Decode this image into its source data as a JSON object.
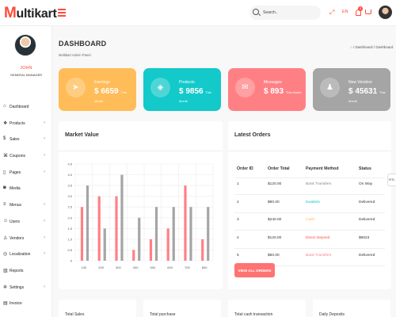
{
  "header": {
    "logo_initial": "M",
    "logo_rest": "ultikart",
    "search_placeholder": "Search..",
    "language": "EN",
    "notification_count": "3"
  },
  "sidebar": {
    "profile_name": "JOHN",
    "profile_role": "GENERAL MANAGER",
    "items": [
      {
        "label": "Dashboard",
        "icon": "home-icon",
        "glyph": "⌂",
        "chevron": false
      },
      {
        "label": "Products",
        "icon": "box-icon",
        "glyph": "❖",
        "chevron": true
      },
      {
        "label": "Sales",
        "icon": "dollar-icon",
        "glyph": "$",
        "chevron": true
      },
      {
        "label": "Coupons",
        "icon": "tag-icon",
        "glyph": "⌘",
        "chevron": true
      },
      {
        "label": "Pages",
        "icon": "clipboard-icon",
        "glyph": "▯",
        "chevron": true
      },
      {
        "label": "Media",
        "icon": "camera-icon",
        "glyph": "◙",
        "chevron": false
      },
      {
        "label": "Menus",
        "icon": "align-left-icon",
        "glyph": "≡",
        "chevron": true
      },
      {
        "label": "Users",
        "icon": "user-plus-icon",
        "glyph": "☺",
        "chevron": true
      },
      {
        "label": "Vendors",
        "icon": "users-icon",
        "glyph": "♙",
        "chevron": true
      },
      {
        "label": "Localization",
        "icon": "chrome-icon",
        "glyph": "◎",
        "chevron": true
      },
      {
        "label": "Reports",
        "icon": "bar-chart-icon",
        "glyph": "▥",
        "chevron": false
      },
      {
        "label": "Settings",
        "icon": "settings-icon",
        "glyph": "✲",
        "chevron": true
      },
      {
        "label": "Invoice",
        "icon": "archive-icon",
        "glyph": "▤",
        "chevron": false
      }
    ]
  },
  "page": {
    "title": "DASHBOARD",
    "subtitle": "Multikart Admin Panel",
    "breadcrumb_sep": "/",
    "breadcrumb_1": "Dashboard",
    "breadcrumb_2": "Dashboard"
  },
  "stats": [
    {
      "label": "Earnings",
      "value": "$ 6659",
      "unit": "This Month",
      "color": "#ffbc58",
      "icon": "navigation-icon",
      "glyph": "➤"
    },
    {
      "label": "Products",
      "value": "$ 9856",
      "unit": "This Month",
      "color": "#13c9ca",
      "icon": "box-icon",
      "glyph": "◈"
    },
    {
      "label": "Messages",
      "value": "$ 893",
      "unit": "This Month",
      "color": "#ff8084",
      "icon": "message-square-icon",
      "glyph": "✉"
    },
    {
      "label": "New Vendors",
      "value": "$ 45631",
      "unit": "This Month",
      "color": "#a5a5a5",
      "icon": "users-icon",
      "glyph": "♟"
    }
  ],
  "market": {
    "title": "Market Value"
  },
  "chart_data": {
    "type": "bar",
    "categories": [
      "100",
      "200",
      "300",
      "400",
      "500",
      "600",
      "700",
      "800"
    ],
    "series": [
      {
        "values": [
          2.5,
          3.0,
          3.0,
          0.5,
          1.0,
          1.5,
          3.5,
          1.0
        ],
        "color": "#ff8084"
      },
      {
        "values": [
          3.5,
          1.5,
          4.0,
          2.0,
          2.5,
          2.5,
          2.5,
          2.5
        ],
        "color": "#a5a5a5"
      }
    ],
    "ylim": [
      0,
      4.5
    ],
    "yticks": [
      "0",
      "0.5",
      "1.0",
      "1.5",
      "2.0",
      "2.5",
      "3.0",
      "3.5",
      "4.0",
      "4.5"
    ],
    "grid": true,
    "legend": "none"
  },
  "orders": {
    "title": "Latest Orders",
    "columns": [
      "Order ID",
      "Order Total",
      "Payment Method",
      "Status"
    ],
    "rows": [
      {
        "id": "1",
        "total": "$120.00",
        "method": "Bank Transfers",
        "method_color": "#888888",
        "status": "On Way"
      },
      {
        "id": "2",
        "total": "$90.00",
        "method": "Ewallets",
        "method_color": "#13c9ca",
        "status": "Delivered"
      },
      {
        "id": "3",
        "total": "$240.00",
        "method": "Cash",
        "method_color": "#ffbc58",
        "status": "Delivered"
      },
      {
        "id": "4",
        "total": "$120.00",
        "method": "Direct Deposit",
        "method_color": "#ff4c3b",
        "status": "$6523"
      },
      {
        "id": "5",
        "total": "$50.00",
        "method": "Bank Transfers",
        "method_color": "#ff8084",
        "status": "Delivered"
      }
    ],
    "button_label": "VIEW ALL ORDERS",
    "edge_tab": "RTL"
  },
  "bottom_cards": [
    "Total Sales",
    "Total purchase",
    "Total cash transaction",
    "Daily Deposits"
  ]
}
